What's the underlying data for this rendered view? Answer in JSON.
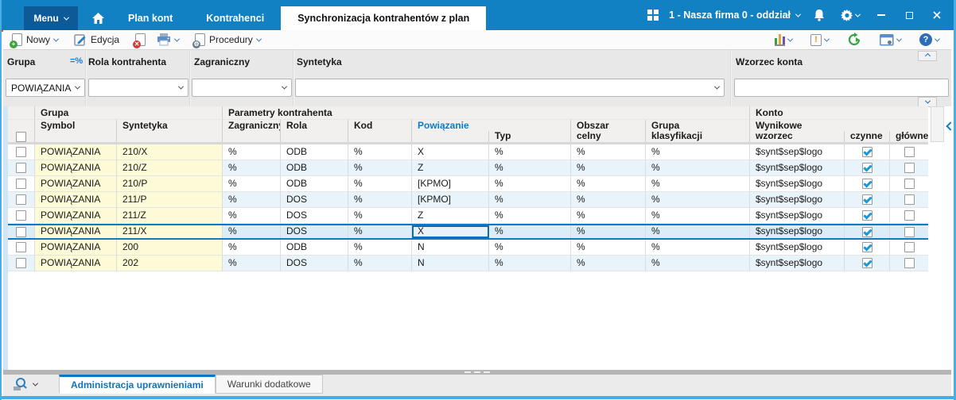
{
  "topbar": {
    "menu": "Menu",
    "tabs": [
      {
        "label": "Plan kont"
      },
      {
        "label": "Kontrahenci"
      },
      {
        "label": "Synchronizacja kontrahentów z plan",
        "active": true
      }
    ],
    "company": "1 - Nasza firma 0 - oddział"
  },
  "toolbar": {
    "new_label": "Nowy",
    "edit_label": "Edycja",
    "procedures_label": "Procedury",
    "help_glyph": "?"
  },
  "filters": {
    "grupa": {
      "label": "Grupa",
      "operator": "=%",
      "value": "POWIĄZANIA"
    },
    "rola": {
      "label": "Rola kontrahenta",
      "value": ""
    },
    "zagraniczny": {
      "label": "Zagraniczny",
      "value": ""
    },
    "syntetyka": {
      "label": "Syntetyka",
      "value": ""
    },
    "wzorzec": {
      "label": "Wzorzec konta",
      "value": ""
    }
  },
  "grid": {
    "group_headers": {
      "grupa": "Grupa",
      "parametry": "Parametry kontrahenta",
      "konto": "Konto"
    },
    "col_headers": {
      "symbol": "Symbol",
      "syntetyka": "Syntetyka",
      "zagraniczny": "Zagraniczny",
      "rola": "Rola",
      "kod": "Kod",
      "powiazanie": "Powiązanie",
      "typ": "Typ",
      "obszar_1": "Obszar",
      "obszar_2": "celny",
      "grupa_1": "Grupa",
      "grupa_2": "klasyfikacji",
      "wynikowe": "Wynikowe",
      "wzorzec": "wzorzec",
      "czynne": "czynne",
      "glowne": "główne"
    },
    "selected_index": 5,
    "rows": [
      {
        "symbol": "POWIĄZANIA",
        "syntetyka": "210/X",
        "zagraniczny": "%",
        "rola": "ODB",
        "kod": "%",
        "powiazanie": "X",
        "typ": "%",
        "obszar_celny": "%",
        "grupa_klasyfikacji": "%",
        "wzorzec": "$synt$sep$logo",
        "czynne": true,
        "glowne": false
      },
      {
        "symbol": "POWIĄZANIA",
        "syntetyka": "210/Z",
        "zagraniczny": "%",
        "rola": "ODB",
        "kod": "%",
        "powiazanie": "Z",
        "typ": "%",
        "obszar_celny": "%",
        "grupa_klasyfikacji": "%",
        "wzorzec": "$synt$sep$logo",
        "czynne": true,
        "glowne": false
      },
      {
        "symbol": "POWIĄZANIA",
        "syntetyka": "210/P",
        "zagraniczny": "%",
        "rola": "ODB",
        "kod": "%",
        "powiazanie": "[KPMO]",
        "typ": "%",
        "obszar_celny": "%",
        "grupa_klasyfikacji": "%",
        "wzorzec": "$synt$sep$logo",
        "czynne": true,
        "glowne": false
      },
      {
        "symbol": "POWIĄZANIA",
        "syntetyka": "211/P",
        "zagraniczny": "%",
        "rola": "DOS",
        "kod": "%",
        "powiazanie": "[KPMO]",
        "typ": "%",
        "obszar_celny": "%",
        "grupa_klasyfikacji": "%",
        "wzorzec": "$synt$sep$logo",
        "czynne": true,
        "glowne": false
      },
      {
        "symbol": "POWIĄZANIA",
        "syntetyka": "211/Z",
        "zagraniczny": "%",
        "rola": "DOS",
        "kod": "%",
        "powiazanie": "Z",
        "typ": "%",
        "obszar_celny": "%",
        "grupa_klasyfikacji": "%",
        "wzorzec": "$synt$sep$logo",
        "czynne": true,
        "glowne": false
      },
      {
        "symbol": "POWIĄZANIA",
        "syntetyka": "211/X",
        "zagraniczny": "%",
        "rola": "DOS",
        "kod": "%",
        "powiazanie": "X",
        "typ": "%",
        "obszar_celny": "%",
        "grupa_klasyfikacji": "%",
        "wzorzec": "$synt$sep$logo",
        "czynne": true,
        "glowne": false
      },
      {
        "symbol": "POWIĄZANIA",
        "syntetyka": "200",
        "zagraniczny": "%",
        "rola": "ODB",
        "kod": "%",
        "powiazanie": "N",
        "typ": "%",
        "obszar_celny": "%",
        "grupa_klasyfikacji": "%",
        "wzorzec": "$synt$sep$logo",
        "czynne": true,
        "glowne": false
      },
      {
        "symbol": "POWIĄZANIA",
        "syntetyka": "202",
        "zagraniczny": "%",
        "rola": "DOS",
        "kod": "%",
        "powiazanie": "N",
        "typ": "%",
        "obszar_celny": "%",
        "grupa_klasyfikacji": "%",
        "wzorzec": "$synt$sep$logo",
        "czynne": true,
        "glowne": false
      }
    ]
  },
  "bottom": {
    "tabs": [
      {
        "label": "Administracja uprawnieniami",
        "active": true
      },
      {
        "label": "Warunki dodatkowe"
      }
    ]
  },
  "colors": {
    "topbar": "#1181c4",
    "menu_button": "#0d5a99",
    "accent_orange": "#e0542a",
    "selection_border": "#0f79c4",
    "row_alt": "#e9f3fa",
    "row_yellow": "#fdfad8",
    "check_blue": "#189ad8",
    "frame_blue": "#45ade2",
    "sorted_header": "#0f7ac2"
  }
}
